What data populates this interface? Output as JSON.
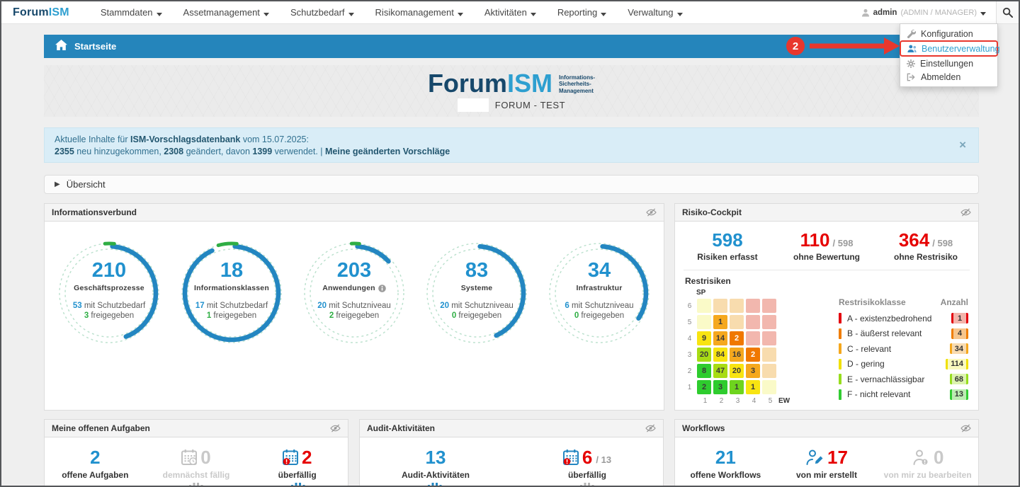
{
  "navbar": {
    "logo_part1": "Forum",
    "logo_part2": "ISM",
    "items": [
      {
        "label": "Stammdaten"
      },
      {
        "label": "Assetmanagement"
      },
      {
        "label": "Schutzbedarf"
      },
      {
        "label": "Risikomanagement"
      },
      {
        "label": "Aktivitäten"
      },
      {
        "label": "Reporting"
      },
      {
        "label": "Verwaltung"
      }
    ],
    "user_name": "admin",
    "user_role": "(ADMIN / MANAGER)"
  },
  "user_menu": {
    "items": [
      {
        "label": "Konfiguration",
        "icon": "wrench-icon",
        "highlighted": false
      },
      {
        "label": "Benutzerverwaltung",
        "icon": "users-icon",
        "highlighted": true
      },
      {
        "label": "Einstellungen",
        "icon": "gear-icon",
        "highlighted": false
      },
      {
        "label": "Abmelden",
        "icon": "signout-icon",
        "highlighted": false
      }
    ]
  },
  "annotation": {
    "step": "2"
  },
  "breadcrumb": {
    "label": "Startseite"
  },
  "hero": {
    "logo_part1": "Forum",
    "logo_part2": "ISM",
    "tagline": [
      "Informations-",
      "Sicherheits-",
      "Management"
    ],
    "subtitle": "FORUM - TEST"
  },
  "alert": {
    "line1_prefix": "Aktuelle Inhalte für ",
    "line1_link": "ISM-Vorschlagsdatenbank",
    "line1_suffix": " vom 15.07.2025:",
    "line2_segments": [
      {
        "text": "2355",
        "bold": true
      },
      {
        "text": " neu hinzugekommen, ",
        "bold": false
      },
      {
        "text": "2308",
        "bold": true
      },
      {
        "text": " geändert, davon ",
        "bold": false
      },
      {
        "text": "1399",
        "bold": true
      },
      {
        "text": " verwendet. | ",
        "bold": false
      },
      {
        "text": "Meine geänderten Vorschläge",
        "bold": true
      }
    ],
    "close_label": "×"
  },
  "uebersicht": {
    "label": "Übersicht"
  },
  "infoverbund": {
    "title": "Informationsverbund",
    "gauges": [
      {
        "value": "210",
        "label": "Geschäftsprozesse",
        "info_icon": false,
        "line1_num": "53",
        "line1_text": "mit Schutzbedarf",
        "line2_num": "3",
        "line2_text": "freigegeben",
        "arc": 0.43,
        "green_arc": 0.03
      },
      {
        "value": "18",
        "label": "Informationsklassen",
        "info_icon": false,
        "line1_num": "17",
        "line1_text": "mit Schutzbedarf",
        "line2_num": "1",
        "line2_text": "freigegeben",
        "arc": 0.92,
        "green_arc": 0.06
      },
      {
        "value": "203",
        "label": "Anwendungen",
        "info_icon": true,
        "line1_num": "20",
        "line1_text": "mit Schutzniveau",
        "line2_num": "2",
        "line2_text": "freigegeben",
        "arc": 0.12,
        "green_arc": 0.025
      },
      {
        "value": "83",
        "label": "Systeme",
        "info_icon": false,
        "line1_num": "20",
        "line1_text": "mit Schutzniveau",
        "line2_num": "0",
        "line2_text": "freigegeben",
        "arc": 0.42,
        "green_arc": 0
      },
      {
        "value": "34",
        "label": "Infrastruktur",
        "info_icon": false,
        "line1_num": "6",
        "line1_text": "mit Schutzniveau",
        "line2_num": "0",
        "line2_text": "freigegeben",
        "arc": 0.33,
        "green_arc": 0
      }
    ]
  },
  "risk": {
    "title": "Risiko-Cockpit",
    "stats": [
      {
        "num": "598",
        "color": "blue",
        "suffix": "",
        "label": "Risiken erfasst"
      },
      {
        "num": "110",
        "color": "red",
        "suffix": "/ 598",
        "label": "ohne Bewertung"
      },
      {
        "num": "364",
        "color": "red",
        "suffix": "/ 598",
        "label": "ohne Restrisiko"
      }
    ],
    "restrisiken_label": "Restrisiken",
    "heatmap": {
      "y_axis_label": "SP",
      "x_axis_label": "EW",
      "y_ticks": [
        "6",
        "5",
        "4",
        "3",
        "2",
        "1"
      ],
      "x_ticks": [
        "1",
        "2",
        "3",
        "4",
        "5"
      ],
      "rows": [
        [
          {
            "v": "",
            "c": "py"
          },
          {
            "v": "",
            "c": "po"
          },
          {
            "v": "",
            "c": "po"
          },
          {
            "v": "",
            "c": "pr"
          },
          {
            "v": "",
            "c": "pr"
          }
        ],
        [
          {
            "v": "",
            "c": "py"
          },
          {
            "v": "1",
            "c": "o"
          },
          {
            "v": "",
            "c": "po"
          },
          {
            "v": "",
            "c": "pr"
          },
          {
            "v": "",
            "c": "pr"
          }
        ],
        [
          {
            "v": "9",
            "c": "y"
          },
          {
            "v": "14",
            "c": "o"
          },
          {
            "v": "2",
            "c": "do"
          },
          {
            "v": "",
            "c": "pr"
          },
          {
            "v": "",
            "c": "pr"
          }
        ],
        [
          {
            "v": "20",
            "c": "yg"
          },
          {
            "v": "84",
            "c": "y"
          },
          {
            "v": "16",
            "c": "o"
          },
          {
            "v": "2",
            "c": "do"
          },
          {
            "v": "",
            "c": "po"
          }
        ],
        [
          {
            "v": "8",
            "c": "g"
          },
          {
            "v": "47",
            "c": "yg"
          },
          {
            "v": "20",
            "c": "y"
          },
          {
            "v": "3",
            "c": "o"
          },
          {
            "v": "",
            "c": "po"
          }
        ],
        [
          {
            "v": "2",
            "c": "g"
          },
          {
            "v": "3",
            "c": "g"
          },
          {
            "v": "1",
            "c": "lg"
          },
          {
            "v": "1",
            "c": "y"
          },
          {
            "v": "",
            "c": "py"
          }
        ]
      ]
    },
    "legend": {
      "header_class": "Restrisikoklasse",
      "header_count": "Anzahl",
      "rows": [
        {
          "label": "A - existenzbedrohend",
          "count": "1",
          "bar": "#e3000f",
          "bg": "#f3b4ab"
        },
        {
          "label": "B - äußerst relevant",
          "count": "4",
          "bar": "#ef7d00",
          "bg": "#f7c68d"
        },
        {
          "label": "C - relevant",
          "count": "34",
          "bar": "#f5a81e",
          "bg": "#f8dbb0"
        },
        {
          "label": "D - gering",
          "count": "114",
          "bar": "#f0e000",
          "bg": "#fafabe"
        },
        {
          "label": "E - vernachlässigbar",
          "count": "68",
          "bar": "#97dd1e",
          "bg": "#dcf3ae"
        },
        {
          "label": "F - nicht relevant",
          "count": "13",
          "bar": "#33cc33",
          "bg": "#bcecb2"
        }
      ]
    }
  },
  "bottom_panels": [
    {
      "id": "panel-tasks",
      "title": "Meine offenen Aufgaben",
      "stats": [
        {
          "icon": "",
          "num": "2",
          "color": "blue",
          "suffix": "",
          "label": "offene Aufgaben",
          "muted": false
        },
        {
          "icon": "calendar-clock-icon",
          "num": "0",
          "color": "muted",
          "suffix": "",
          "label": "demnächst fällig",
          "muted": true
        },
        {
          "icon": "calendar-alert-icon",
          "num": "2",
          "color": "red",
          "suffix": "",
          "label": "überfällig",
          "muted": false
        }
      ],
      "cut_icons": [
        {
          "x": 203,
          "color": "#b5b5b5"
        },
        {
          "x": 347,
          "color": "#2386c1"
        }
      ]
    },
    {
      "id": "panel-audit",
      "title": "Audit-Aktivitäten",
      "stats": [
        {
          "icon": "",
          "num": "13",
          "color": "blue",
          "suffix": "",
          "label": "Audit-Aktivitäten",
          "muted": false
        },
        {
          "icon": "calendar-alert-icon",
          "num": "6",
          "color": "red",
          "suffix": "/ 13",
          "label": "überfällig",
          "muted": false
        }
      ],
      "cut_icons": [
        {
          "x": 95,
          "color": "#2386c1"
        },
        {
          "x": 310,
          "color": "#b5b5b5"
        }
      ]
    },
    {
      "id": "panel-wf",
      "title": "Workflows",
      "stats": [
        {
          "icon": "",
          "num": "21",
          "color": "blue",
          "suffix": "",
          "label": "offene Workflows",
          "muted": false
        },
        {
          "icon": "person-edit-icon",
          "num": "17",
          "color": "red",
          "suffix": "",
          "label": "von mir erstellt",
          "muted": false
        },
        {
          "icon": "person-badge-icon",
          "num": "0",
          "color": "muted",
          "suffix": "",
          "label": "von mir zu bearbeiten",
          "muted": true
        }
      ],
      "cut_icons": []
    }
  ],
  "colors": {
    "primary_blue": "#2386c1",
    "number_blue": "#2191ce",
    "number_red": "#e60000",
    "number_green": "#2fae44",
    "annotation_red": "#e8372d",
    "crumb_bar": "#2585bb"
  }
}
